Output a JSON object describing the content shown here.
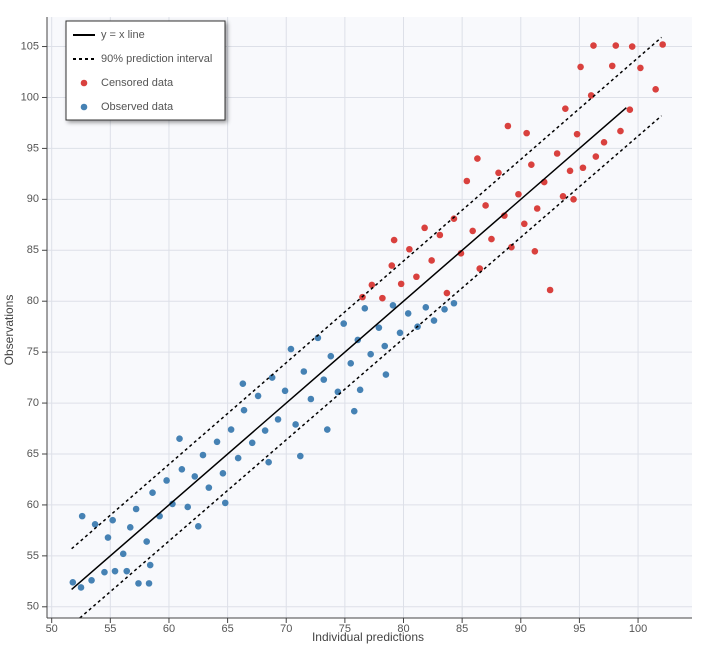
{
  "chart_data": {
    "type": "scatter",
    "x_label": "Individual predictions",
    "y_label": "Observations",
    "xlim": [
      49.6,
      104.6
    ],
    "ylim": [
      48.9,
      107.9
    ],
    "xticks": [
      50,
      55,
      60,
      65,
      70,
      75,
      80,
      85,
      90,
      95,
      100
    ],
    "yticks": [
      50,
      55,
      60,
      65,
      70,
      75,
      80,
      85,
      90,
      95,
      100,
      105
    ],
    "grid": true,
    "legend": "top-left",
    "lines": [
      {
        "name": "y = x line",
        "color": "#000000",
        "dash": "solid",
        "x": [
          51.7,
          99
        ],
        "y": [
          51.7,
          99
        ]
      },
      {
        "name": "90% prediction interval",
        "color": "#000000",
        "dash": "dotted",
        "x": [
          51.7,
          102,
          null,
          52.4,
          102
        ],
        "y": [
          55.7,
          105.9,
          null,
          48.9,
          98.2
        ]
      }
    ],
    "series": [
      {
        "name": "Censored data",
        "color": "#d9413e",
        "x": [
          76.5,
          77.3,
          78.2,
          79.0,
          79.8,
          80.5,
          81.1,
          81.8,
          82.4,
          83.1,
          83.7,
          84.3,
          84.9,
          85.4,
          85.9,
          86.5,
          87.0,
          87.5,
          88.1,
          88.6,
          89.2,
          89.8,
          90.3,
          90.9,
          91.4,
          92.0,
          92.5,
          93.1,
          93.6,
          94.2,
          94.8,
          95.3,
          96.0,
          96.4,
          97.1,
          97.8,
          98.5,
          99.3,
          100.2,
          101.5,
          102.1,
          96.2,
          98.1,
          99.5,
          95.1,
          93.8,
          88.9,
          86.3,
          79.2,
          90.5,
          94.5,
          91.2
        ],
        "y": [
          80.4,
          81.6,
          80.3,
          83.5,
          81.7,
          85.1,
          82.4,
          87.2,
          84.0,
          86.5,
          80.8,
          88.1,
          84.7,
          91.8,
          86.9,
          83.2,
          89.4,
          86.1,
          92.6,
          88.4,
          85.3,
          90.5,
          87.6,
          93.4,
          89.1,
          91.7,
          81.1,
          94.5,
          90.3,
          92.8,
          96.4,
          93.1,
          100.2,
          94.2,
          95.6,
          103.1,
          96.7,
          98.8,
          102.9,
          100.8,
          105.2,
          105.1,
          105.1,
          105,
          103,
          98.9,
          97.2,
          94.0,
          86.0,
          96.5,
          90.0,
          84.9
        ]
      },
      {
        "name": "Observed data",
        "color": "#4682b4",
        "x": [
          51.8,
          52.5,
          53.4,
          54.5,
          55.4,
          56.4,
          57.4,
          58.3,
          52.6,
          53.7,
          54.8,
          55.2,
          56.1,
          56.7,
          57.2,
          58.1,
          58.6,
          59.2,
          59.8,
          60.3,
          61.1,
          61.6,
          62.2,
          62.9,
          63.4,
          64.1,
          64.6,
          65.3,
          65.9,
          66.4,
          67.1,
          67.6,
          68.2,
          68.8,
          69.3,
          69.9,
          70.4,
          70.8,
          71.5,
          72.1,
          72.7,
          73.2,
          73.8,
          74.4,
          74.9,
          75.5,
          76.1,
          76.7,
          77.2,
          77.9,
          78.4,
          79.1,
          79.7,
          80.4,
          81.2,
          81.9,
          82.6,
          83.5,
          84.3,
          71.2,
          73.5,
          76.3,
          62.5,
          58.4,
          68.5,
          66.3,
          60.9,
          75.8,
          78.5,
          64.8
        ],
        "y": [
          52.4,
          51.9,
          52.6,
          53.4,
          53.5,
          53.5,
          52.3,
          52.3,
          58.9,
          58.1,
          56.8,
          58.5,
          55.2,
          57.8,
          59.6,
          56.4,
          61.2,
          58.9,
          62.4,
          60.1,
          63.5,
          59.8,
          62.8,
          64.9,
          61.7,
          66.2,
          63.1,
          67.4,
          64.6,
          69.3,
          66.1,
          70.7,
          67.3,
          72.5,
          68.4,
          71.2,
          75.3,
          67.9,
          73.1,
          70.4,
          76.4,
          72.3,
          74.6,
          71.1,
          77.8,
          73.9,
          76.2,
          79.3,
          74.8,
          77.4,
          75.6,
          79.6,
          76.9,
          78.8,
          77.5,
          79.4,
          78.1,
          79.2,
          79.8,
          64.8,
          67.4,
          71.3,
          57.9,
          54.1,
          64.2,
          71.9,
          66.5,
          69.2,
          72.8,
          60.2
        ]
      }
    ]
  }
}
